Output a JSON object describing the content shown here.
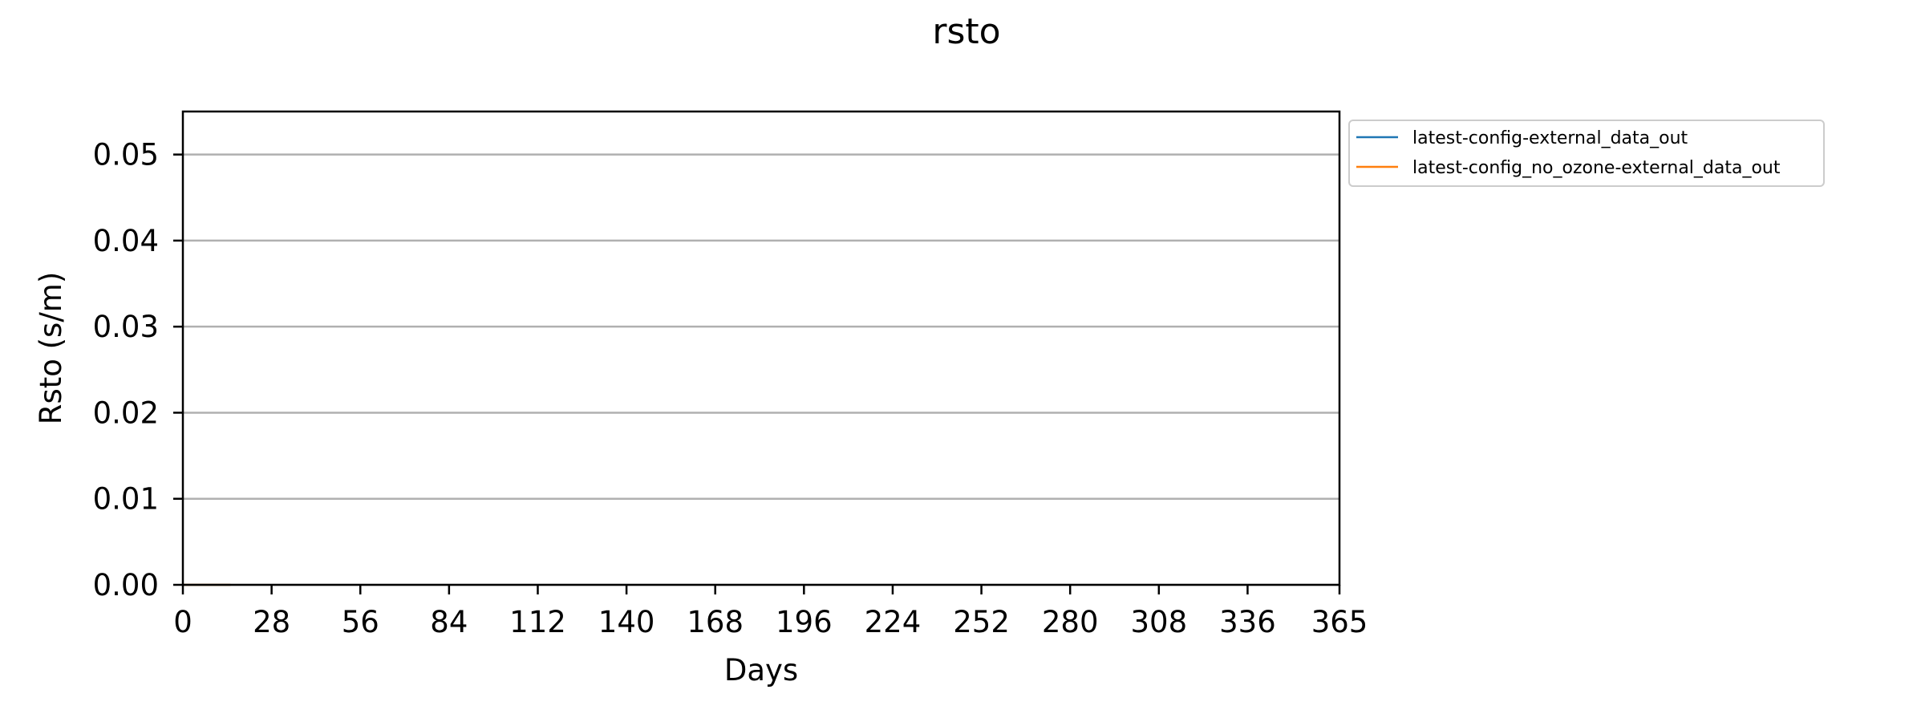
{
  "chart_data": {
    "type": "line",
    "title": "rsto",
    "xlabel": "Days",
    "ylabel": "Rsto (s/m)",
    "xlim": [
      0,
      365
    ],
    "ylim": [
      0,
      0.055
    ],
    "xticks": [
      0,
      28,
      56,
      84,
      112,
      140,
      168,
      196,
      224,
      252,
      280,
      308,
      336,
      365
    ],
    "xtick_labels": [
      "0",
      "28",
      "56",
      "84",
      "112",
      "140",
      "168",
      "196",
      "224",
      "252",
      "280",
      "308",
      "336",
      "365"
    ],
    "yticks": [
      0,
      0.01,
      0.02,
      0.03,
      0.04,
      0.05
    ],
    "ytick_labels": [
      "0.00",
      "0.01",
      "0.02",
      "0.03",
      "0.04",
      "0.05"
    ],
    "grid": "horizontal",
    "legend_position": "outside-top-right",
    "series": [
      {
        "name": "latest-config-external_data_out",
        "color": "#1f77b4",
        "x": [
          0,
          5,
          10,
          15
        ],
        "y": [
          0,
          0,
          0,
          0
        ]
      },
      {
        "name": "latest-config_no_ozone-external_data_out",
        "color": "#ff7f0e",
        "x": [
          0,
          5,
          10,
          15
        ],
        "y": [
          0,
          0,
          0,
          0
        ]
      }
    ]
  },
  "colors": {
    "grid": "#b0b0b0",
    "axis": "#000000",
    "legend_border": "#cccccc"
  }
}
